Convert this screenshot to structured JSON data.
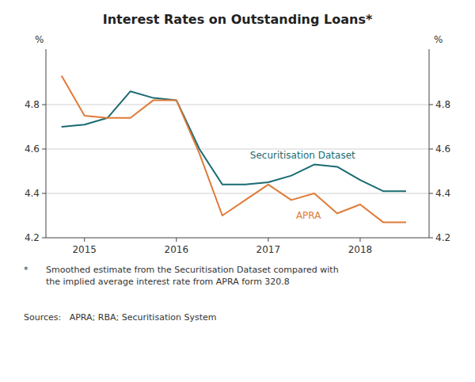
{
  "chart_data": {
    "type": "line",
    "title": "Interest Rates on Outstanding Loans*",
    "y_label": "%",
    "y2_label": "%",
    "ylim": [
      4.2,
      5.05
    ],
    "yticks": [
      4.2,
      4.4,
      4.6,
      4.8
    ],
    "y2lim": [
      4.2,
      5.05
    ],
    "y2ticks": [
      4.2,
      4.4,
      4.6,
      4.8
    ],
    "xlim": [
      2014.58,
      2018.75
    ],
    "xticks": [
      2015,
      2016,
      2017,
      2018
    ],
    "grid": true,
    "series": [
      {
        "name": "Securitisation Dataset",
        "color": "#1a6b72",
        "x": [
          2014.75,
          2015.0,
          2015.25,
          2015.5,
          2015.75,
          2016.0,
          2016.08,
          2016.25,
          2016.5,
          2016.75,
          2017.0,
          2017.25,
          2017.5,
          2017.75,
          2018.0,
          2018.25,
          2018.5
        ],
        "values": [
          4.7,
          4.71,
          4.74,
          4.86,
          4.83,
          4.82,
          4.75,
          4.6,
          4.44,
          4.44,
          4.45,
          4.48,
          4.53,
          4.52,
          4.46,
          4.41,
          4.41
        ]
      },
      {
        "name": "APRA",
        "color": "#e07b39",
        "x": [
          2014.75,
          2015.0,
          2015.25,
          2015.5,
          2015.75,
          2016.0,
          2016.25,
          2016.5,
          2016.75,
          2017.0,
          2017.25,
          2017.5,
          2017.75,
          2018.0,
          2018.25,
          2018.5
        ],
        "values": [
          4.93,
          4.75,
          4.74,
          4.74,
          4.82,
          4.82,
          4.58,
          4.3,
          4.37,
          4.44,
          4.37,
          4.4,
          4.31,
          4.35,
          4.27,
          4.27
        ]
      }
    ],
    "footnote_marker": "*",
    "footnote": "Smoothed estimate from the Securitisation Dataset compared with\nthe implied average interest rate from APRA form 320.8",
    "source": "Sources:   APRA; RBA; Securitisation System"
  }
}
